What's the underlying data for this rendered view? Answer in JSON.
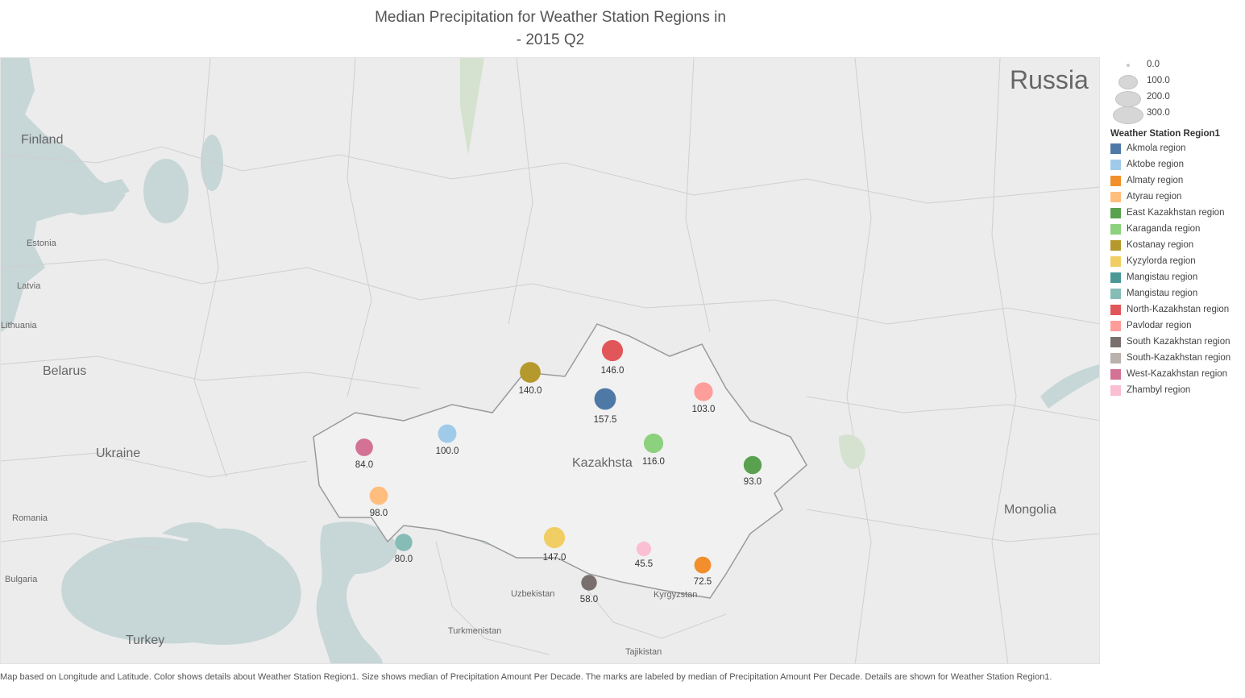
{
  "title_line1": "Median Precipitation for Weather Station Regions in",
  "title_line2": "- 2015 Q2",
  "map_labels": {
    "russia": "Russia",
    "finland": "Finland",
    "estonia": "Estonia",
    "latvia": "Latvia",
    "lithuania": "Lithuania",
    "belarus": "Belarus",
    "ukraine": "Ukraine",
    "romania": "Romania",
    "bulgaria": "Bulgaria",
    "turkey": "Turkey",
    "kazakhstan": "Kazakhsta",
    "mongolia": "Mongolia",
    "uzbekistan": "Uzbekistan",
    "turkmenistan": "Turkmenistan",
    "kyrgyzstan": "Kyrgyzstan",
    "tajikistan": "Tajikistan"
  },
  "size_legend": [
    {
      "label": "0.0",
      "value": 0
    },
    {
      "label": "100.0",
      "value": 100
    },
    {
      "label": "200.0",
      "value": 200
    },
    {
      "label": "300.0",
      "value": 300
    }
  ],
  "legend_title": "Weather Station Region1",
  "legend_items": [
    {
      "name": "Akmola region",
      "color": "#4e79a7"
    },
    {
      "name": "Aktobe region",
      "color": "#a0cbe8"
    },
    {
      "name": "Almaty region",
      "color": "#f28e2b"
    },
    {
      "name": "Atyrau region",
      "color": "#ffbe7d"
    },
    {
      "name": "East Kazakhstan region",
      "color": "#59a14f"
    },
    {
      "name": "Karaganda region",
      "color": "#8cd17d"
    },
    {
      "name": "Kostanay region",
      "color": "#b6992d"
    },
    {
      "name": "Kyzylorda region",
      "color": "#f1ce63"
    },
    {
      "name": "Mangistau  region",
      "color": "#499894"
    },
    {
      "name": "Mangistau region",
      "color": "#86bcb6"
    },
    {
      "name": "North-Kazakhstan region",
      "color": "#e15759"
    },
    {
      "name": "Pavlodar region",
      "color": "#ff9d9a"
    },
    {
      "name": "South Kazakhstan region",
      "color": "#79706e"
    },
    {
      "name": "South-Kazakhstan region",
      "color": "#bab0ac"
    },
    {
      "name": "West-Kazakhstan region",
      "color": "#d37295"
    },
    {
      "name": "Zhambyl region",
      "color": "#fabfd2"
    }
  ],
  "markers": [
    {
      "region": "North-Kazakhstan region",
      "label": "146.0",
      "value": 146.0,
      "color": "#e15759"
    },
    {
      "region": "Kostanay region",
      "label": "140.0",
      "value": 140.0,
      "color": "#b6992d"
    },
    {
      "region": "Akmola region",
      "label": "157.5",
      "value": 157.5,
      "color": "#4e79a7"
    },
    {
      "region": "Pavlodar region",
      "label": "103.0",
      "value": 103.0,
      "color": "#ff9d9a"
    },
    {
      "region": "Aktobe region",
      "label": "100.0",
      "value": 100.0,
      "color": "#a0cbe8"
    },
    {
      "region": "West-Kazakhstan region",
      "label": "84.0",
      "value": 84.0,
      "color": "#d37295"
    },
    {
      "region": "Karaganda region",
      "label": "116.0",
      "value": 116.0,
      "color": "#8cd17d"
    },
    {
      "region": "East Kazakhstan region",
      "label": "93.0",
      "value": 93.0,
      "color": "#59a14f"
    },
    {
      "region": "Atyrau region",
      "label": "98.0",
      "value": 98.0,
      "color": "#ffbe7d"
    },
    {
      "region": "Mangistau region",
      "label": "80.0",
      "value": 80.0,
      "color": "#86bcb6"
    },
    {
      "region": "Kyzylorda region",
      "label": "147.0",
      "value": 147.0,
      "color": "#f1ce63"
    },
    {
      "region": "Zhambyl region",
      "label": "45.5",
      "value": 45.5,
      "color": "#fabfd2"
    },
    {
      "region": "Almaty region",
      "label": "72.5",
      "value": 72.5,
      "color": "#f28e2b"
    },
    {
      "region": "South Kazakhstan region",
      "label": "58.0",
      "value": 58.0,
      "color": "#79706e"
    }
  ],
  "caption": "Map based on Longitude and Latitude.  Color shows details about Weather Station Region1.  Size shows median of Precipitation Amount Per Decade.  The marks are labeled by median of Precipitation Amount Per Decade.  Details are shown for Weather Station Region1."
}
